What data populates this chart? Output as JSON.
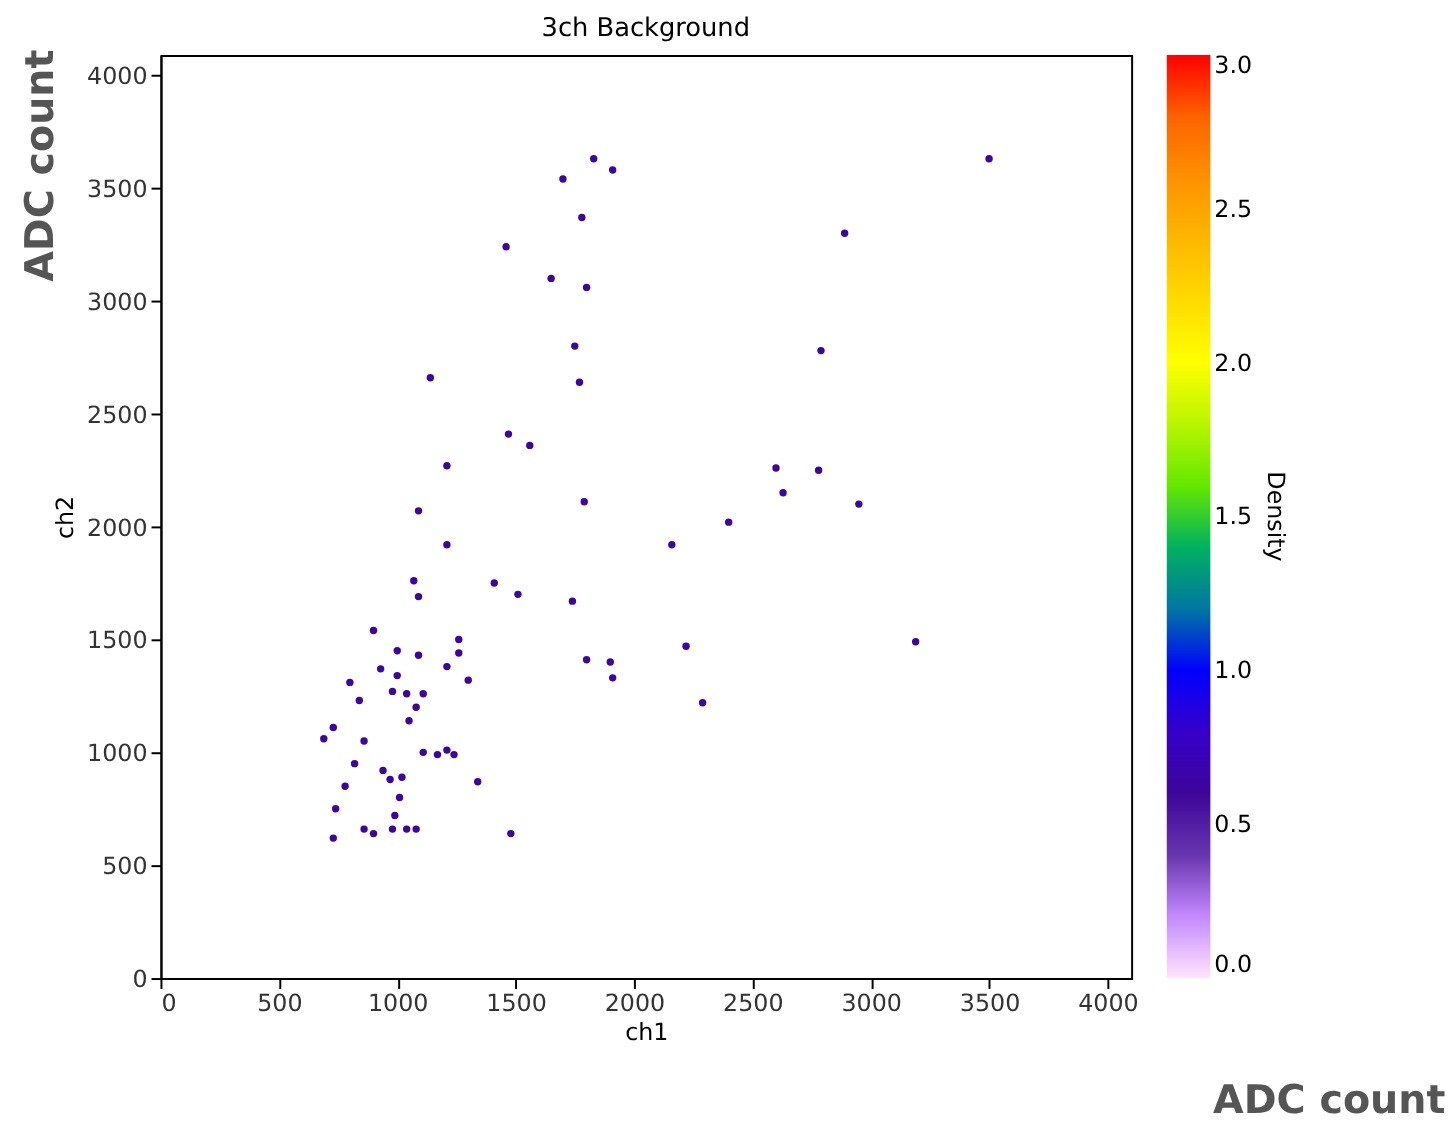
{
  "chart_data": {
    "type": "scatter",
    "title": "3ch Background",
    "xlabel": "ch1",
    "ylabel": "ch2",
    "clabel": "Density",
    "annotations": [
      "ADC count",
      "ADC count"
    ],
    "x": [
      1830,
      1910,
      1700,
      1780,
      1460,
      1650,
      1800,
      1750,
      1140,
      1770,
      1470,
      1560,
      1210,
      3500,
      2890,
      2790,
      2600,
      2780,
      1090,
      1210,
      1410,
      1510,
      1740,
      1790,
      1070,
      1090,
      900,
      1260,
      1000,
      1090,
      1260,
      1210,
      930,
      1000,
      1300,
      800,
      980,
      1040,
      1110,
      840,
      1080,
      1050,
      730,
      690,
      860,
      1110,
      1170,
      1210,
      1240,
      820,
      940,
      970,
      1020,
      1340,
      780,
      1010,
      740,
      990,
      860,
      900,
      980,
      1040,
      1080,
      730,
      1480,
      1800,
      1900,
      1910,
      2630,
      2950,
      2400,
      2160,
      3190,
      2220,
      2290
    ],
    "values": [
      3630,
      3580,
      3540,
      3370,
      3240,
      3100,
      3060,
      2800,
      2660,
      2640,
      2410,
      2360,
      2270,
      3630,
      3300,
      2780,
      2260,
      2250,
      2070,
      1920,
      1750,
      1700,
      1670,
      2110,
      1760,
      1690,
      1540,
      1500,
      1450,
      1430,
      1440,
      1380,
      1370,
      1340,
      1320,
      1310,
      1270,
      1260,
      1260,
      1230,
      1200,
      1140,
      1110,
      1060,
      1050,
      1000,
      990,
      1010,
      990,
      950,
      920,
      880,
      890,
      870,
      850,
      800,
      750,
      720,
      660,
      640,
      660,
      660,
      660,
      620,
      640,
      1410,
      1400,
      1330,
      2150,
      2100,
      2020,
      1920,
      1490,
      1470,
      1220
    ],
    "cvalues": [
      0.6,
      0.6,
      0.6,
      0.6,
      0.6,
      0.6,
      0.6,
      0.6,
      0.6,
      0.6,
      0.6,
      0.6,
      0.6,
      0.6,
      0.6,
      0.6,
      0.6,
      0.6,
      0.6,
      0.6,
      0.6,
      0.6,
      0.6,
      0.6,
      0.6,
      0.6,
      0.6,
      0.6,
      0.6,
      0.6,
      0.6,
      0.6,
      0.6,
      0.6,
      0.6,
      0.6,
      0.6,
      0.6,
      0.6,
      0.6,
      0.6,
      0.6,
      0.6,
      0.6,
      0.6,
      0.6,
      0.6,
      0.6,
      0.6,
      0.6,
      0.6,
      0.6,
      0.6,
      0.6,
      0.6,
      0.6,
      0.6,
      0.6,
      0.6,
      0.6,
      0.6,
      0.6,
      0.6,
      0.6,
      0.6,
      0.6,
      0.6,
      0.6,
      0.6,
      0.6,
      0.6,
      0.6,
      0.6,
      0.6,
      0.6
    ],
    "xlim": [
      0,
      4100
    ],
    "ylim": [
      0,
      4090
    ],
    "xticks": [
      0,
      500,
      1000,
      1500,
      2000,
      2500,
      3000,
      3500,
      4000
    ],
    "yticks": [
      0,
      500,
      1000,
      1500,
      2000,
      2500,
      3000,
      3500,
      4000
    ],
    "clim": [
      0,
      3
    ],
    "cticks": [
      {
        "value": 0,
        "label": "0.0"
      },
      {
        "value": 0.5,
        "label": "0.5"
      },
      {
        "value": 1,
        "label": "1.0"
      },
      {
        "value": 1.5,
        "label": "1.5"
      },
      {
        "value": 2,
        "label": "2.0"
      },
      {
        "value": 2.5,
        "label": "2.5"
      },
      {
        "value": 3,
        "label": "3.0"
      }
    ],
    "grid": false
  }
}
